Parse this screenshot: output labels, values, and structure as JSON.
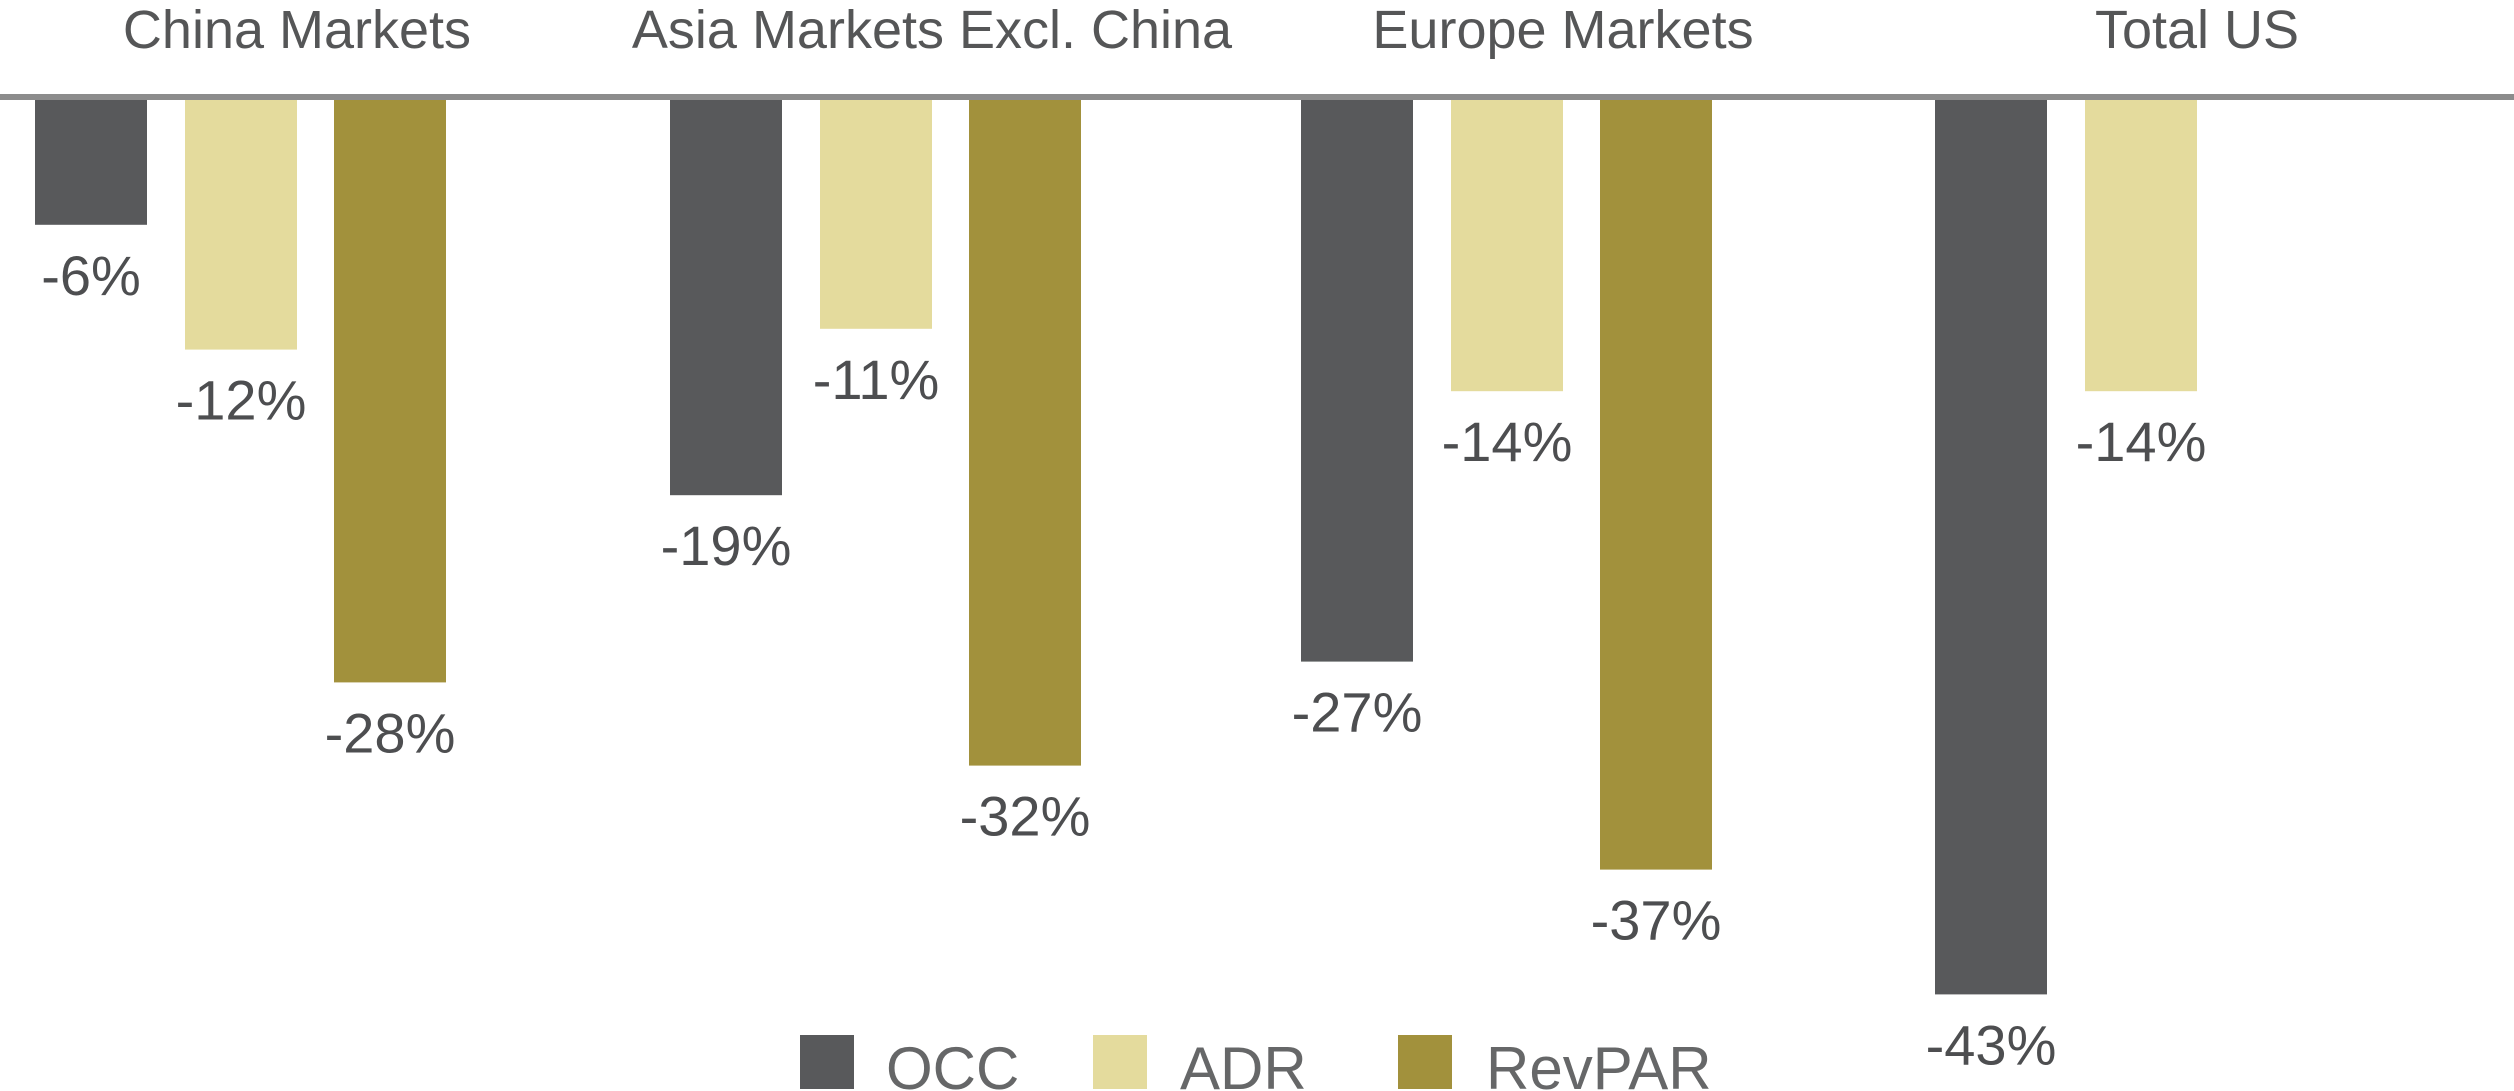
{
  "chart_data": {
    "type": "bar",
    "categories": [
      "China Markets",
      "Asia Markets Excl. China",
      "Europe Markets",
      "Total US"
    ],
    "series": [
      {
        "name": "OCC",
        "color": "#58595b",
        "values": [
          -6,
          -19,
          -27,
          -43
        ],
        "labels": [
          "-6%",
          "-19%",
          "-27%",
          "-43%"
        ]
      },
      {
        "name": "ADR",
        "color": "#e4db9d",
        "values": [
          -12,
          -11,
          -14,
          -14
        ],
        "labels": [
          "-12%",
          "-11%",
          "-14%",
          "-14%"
        ]
      },
      {
        "name": "RevPAR",
        "color": "#a2913c",
        "values": [
          -28,
          -32,
          -37,
          null
        ],
        "labels": [
          "-28%",
          "-32%",
          "-37%",
          null
        ]
      }
    ],
    "title": "",
    "xlabel": "",
    "ylabel": "",
    "ylim": [
      -45,
      0
    ],
    "grid": false,
    "legend_position": "bottom",
    "axis_color": "#8c8c8c"
  }
}
